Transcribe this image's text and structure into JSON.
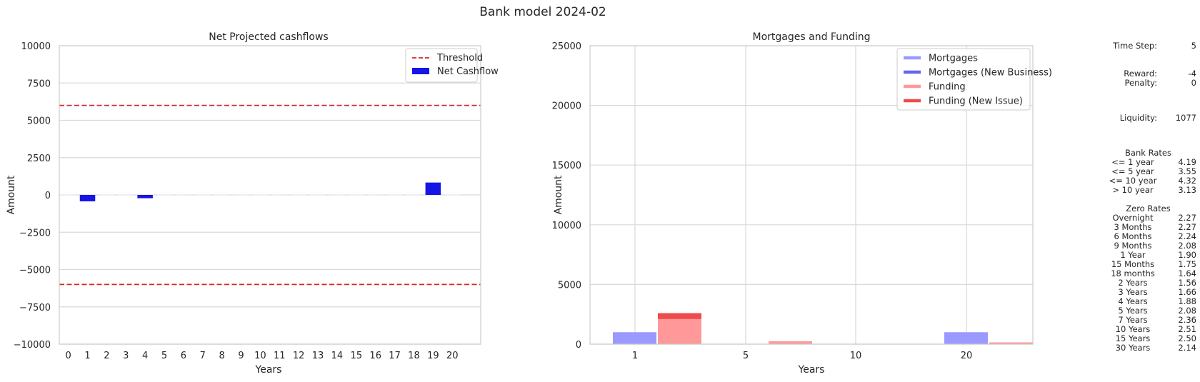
{
  "figure": {
    "title": "Bank model 2024-02"
  },
  "chart_data": [
    {
      "type": "bar",
      "title": "Net Projected cashflows",
      "xlabel": "Years",
      "ylabel": "Amount",
      "ylim": [
        -10000,
        10000
      ],
      "yticks": [
        10000,
        7500,
        5000,
        2500,
        0,
        -2500,
        -5000,
        -7500,
        -10000
      ],
      "ytick_labels": [
        "10000",
        "7500",
        "5000",
        "2500",
        "0",
        "−2500",
        "−5000",
        "−7500",
        "−10000"
      ],
      "categories": [
        0,
        1,
        2,
        3,
        4,
        5,
        6,
        7,
        8,
        9,
        10,
        11,
        12,
        13,
        14,
        15,
        16,
        17,
        18,
        19,
        20
      ],
      "series": [
        {
          "name": "Net Cashflow",
          "color": "#1515e6",
          "values": [
            0,
            -430,
            0,
            0,
            -220,
            0,
            0,
            0,
            0,
            0,
            0,
            0,
            0,
            0,
            0,
            0,
            0,
            0,
            0,
            830,
            0
          ]
        }
      ],
      "threshold": {
        "name": "Threshold",
        "values": [
          6000,
          -6000
        ],
        "color": "#d62728"
      },
      "legend": "top-right",
      "grid": true
    },
    {
      "type": "bar",
      "title": "Mortgages and Funding",
      "xlabel": "Years",
      "ylabel": "Amount",
      "ylim": [
        0,
        25000
      ],
      "yticks": [
        0,
        5000,
        10000,
        15000,
        20000,
        25000
      ],
      "categories": [
        "1",
        "5",
        "10",
        "20"
      ],
      "series": [
        {
          "name": "Mortgages",
          "color": "#9999ff",
          "values": [
            1000,
            0,
            0,
            1000
          ]
        },
        {
          "name": "Mortgages (New Business)",
          "color": "#6666ee",
          "values": [
            0,
            0,
            0,
            0
          ]
        },
        {
          "name": "Funding",
          "color": "#ff9999",
          "values": [
            2100,
            250,
            0,
            150
          ]
        },
        {
          "name": "Funding (New Issue)",
          "color": "#f04b4b",
          "values": [
            500,
            0,
            0,
            0
          ]
        }
      ],
      "legend": "top-right",
      "grid": true
    }
  ],
  "panel": {
    "time_step": {
      "label": "Time Step:",
      "value": "5"
    },
    "reward": {
      "label": "Reward:",
      "value": "-4"
    },
    "penalty": {
      "label": "Penalty:",
      "value": "0"
    },
    "liquidity": {
      "label": "Liquidity:",
      "value": "1077"
    },
    "bank_rates": {
      "title": "Bank Rates",
      "rows": [
        {
          "label": "<= 1 year",
          "value": "4.19"
        },
        {
          "label": "<= 5 year",
          "value": "3.55"
        },
        {
          "label": "<= 10 year",
          "value": "4.32"
        },
        {
          "label": "> 10 year",
          "value": "3.13"
        }
      ]
    },
    "zero_rates": {
      "title": "Zero Rates",
      "rows": [
        {
          "label": "Overnight",
          "value": "2.27"
        },
        {
          "label": "3 Months",
          "value": "2.27"
        },
        {
          "label": "6 Months",
          "value": "2.24"
        },
        {
          "label": "9 Months",
          "value": "2.08"
        },
        {
          "label": "1 Year",
          "value": "1.90"
        },
        {
          "label": "15 Months",
          "value": "1.75"
        },
        {
          "label": "18 months",
          "value": "1.64"
        },
        {
          "label": "2 Years",
          "value": "1.56"
        },
        {
          "label": "3 Years",
          "value": "1.66"
        },
        {
          "label": "4 Years",
          "value": "1.88"
        },
        {
          "label": "5 Years",
          "value": "2.08"
        },
        {
          "label": "7 Years",
          "value": "2.36"
        },
        {
          "label": "10 Years",
          "value": "2.51"
        },
        {
          "label": "15 Years",
          "value": "2.50"
        },
        {
          "label": "30 Years",
          "value": "2.14"
        }
      ]
    }
  }
}
